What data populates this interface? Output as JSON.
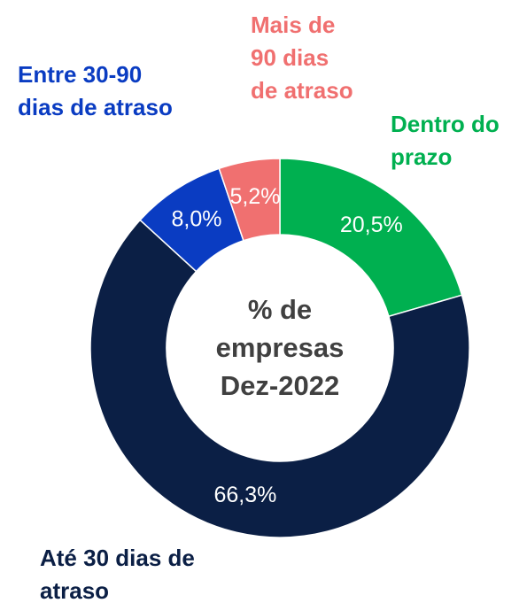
{
  "chart_data": {
    "type": "donut",
    "title": "% de\nempresas\nDez-2022",
    "categories": [
      "Dentro do\nprazo",
      "Até 30 dias de\natraso",
      "Entre 30-90\ndias de atraso",
      "Mais de\n90 dias\nde atraso"
    ],
    "values": [
      20.5,
      66.3,
      8.0,
      5.2
    ],
    "value_labels": [
      "20,5%",
      "66,3%",
      "8,0%",
      "5,2%"
    ],
    "colors": [
      "#00b050",
      "#0b1f45",
      "#0a3cc2",
      "#f07070"
    ]
  }
}
